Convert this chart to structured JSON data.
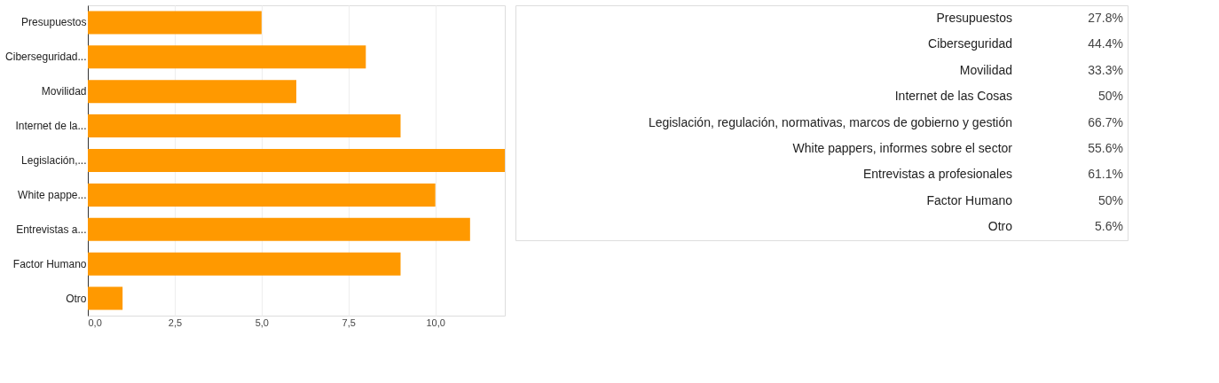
{
  "chart_data": [
    {
      "type": "bar",
      "orientation": "horizontal",
      "categories": [
        "Presupuestos",
        "Ciberseguridad...",
        "Movilidad",
        "Internet de la...",
        "Legislación,...",
        "White pappe...",
        "Entrevistas a...",
        "Factor Humano",
        "Otro"
      ],
      "values": [
        5,
        8,
        6,
        9,
        12,
        10,
        11,
        9,
        1
      ],
      "color": "#ff9900",
      "xlim": [
        0,
        12
      ],
      "xticks": [
        {
          "value": 0,
          "label": "0,0"
        },
        {
          "value": 2.5,
          "label": "2,5"
        },
        {
          "value": 5,
          "label": "5,0"
        },
        {
          "value": 7.5,
          "label": "7,5"
        },
        {
          "value": 10,
          "label": "10,0"
        }
      ],
      "grid": "x"
    },
    {
      "type": "other",
      "categories": [
        "Presupuestos",
        "Ciberseguridad",
        "Movilidad",
        "Internet de las Cosas",
        "Legislación, regulación, normativas, marcos de gobierno y gestión",
        "White pappers, informes sobre el sector",
        "Entrevistas a profesionales",
        "Factor Humano",
        "Otro"
      ],
      "value_labels": [
        "27.8%",
        "44.4%",
        "33.3%",
        "50%",
        "66.7%",
        "55.6%",
        "61.1%",
        "50%",
        "5.6%"
      ]
    }
  ]
}
